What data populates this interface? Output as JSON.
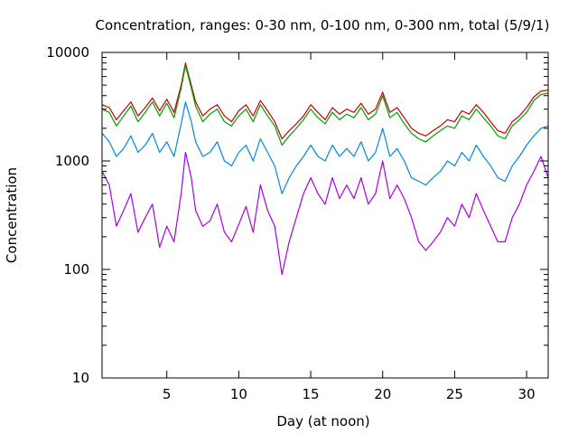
{
  "chart_data": {
    "type": "line",
    "title": "Concentration, ranges: 0-30 nm, 0-100 nm, 0-300 nm, total (5/9/1)",
    "xlabel": "Day (at noon)",
    "ylabel": "Concentration",
    "xlim": [
      0.5,
      31.5
    ],
    "ylim": [
      10,
      10000
    ],
    "yscale": "log",
    "x_ticks": [
      5,
      10,
      15,
      20,
      25,
      30
    ],
    "y_ticks": [
      10,
      100,
      1000,
      10000
    ],
    "x_tick_labels": [
      "5",
      "10",
      "15",
      "20",
      "25",
      "30"
    ],
    "y_tick_labels": [
      "10",
      "100",
      "1000",
      "10000"
    ],
    "grid": false,
    "series": [
      {
        "color": "#cc0000",
        "x": [
          0.5,
          1,
          1.5,
          2,
          2.5,
          3,
          3.5,
          4,
          4.5,
          5,
          5.5,
          6,
          6.3,
          6.7,
          7,
          7.5,
          8,
          8.5,
          9,
          9.5,
          10,
          10.5,
          11,
          11.5,
          12,
          12.5,
          13,
          13.5,
          14,
          14.5,
          15,
          15.5,
          16,
          16.5,
          17,
          17.5,
          18,
          18.5,
          19,
          19.5,
          20,
          20.5,
          21,
          21.5,
          22,
          22.5,
          23,
          23.5,
          24,
          24.5,
          25,
          25.5,
          26,
          26.5,
          27,
          27.5,
          28,
          28.5,
          29,
          29.5,
          30,
          30.5,
          31,
          31.5
        ],
        "values": [
          3300,
          3100,
          2400,
          2900,
          3500,
          2600,
          3100,
          3800,
          2900,
          3700,
          2800,
          5000,
          8000,
          5000,
          3500,
          2600,
          3000,
          3300,
          2600,
          2300,
          2900,
          3300,
          2600,
          3600,
          2900,
          2300,
          1600,
          1900,
          2200,
          2600,
          3300,
          2800,
          2400,
          3100,
          2700,
          3000,
          2800,
          3400,
          2700,
          3000,
          4300,
          2800,
          3100,
          2500,
          2000,
          1800,
          1700,
          1900,
          2100,
          2400,
          2300,
          2900,
          2700,
          3300,
          2800,
          2300,
          1900,
          1800,
          2300,
          2600,
          3100,
          3900,
          4400,
          4500
        ]
      },
      {
        "color": "#00a000",
        "x": [
          0.5,
          1,
          1.5,
          2,
          2.5,
          3,
          3.5,
          4,
          4.5,
          5,
          5.5,
          6,
          6.3,
          6.7,
          7,
          7.5,
          8,
          8.5,
          9,
          9.5,
          10,
          10.5,
          11,
          11.5,
          12,
          12.5,
          13,
          13.5,
          14,
          14.5,
          15,
          15.5,
          16,
          16.5,
          17,
          17.5,
          18,
          18.5,
          19,
          19.5,
          20,
          20.5,
          21,
          21.5,
          22,
          22.5,
          23,
          23.5,
          24,
          24.5,
          25,
          25.5,
          26,
          26.5,
          27,
          27.5,
          28,
          28.5,
          29,
          29.5,
          30,
          30.5,
          31,
          31.5
        ],
        "values": [
          3000,
          2800,
          2100,
          2600,
          3200,
          2300,
          2800,
          3500,
          2600,
          3400,
          2500,
          4700,
          7600,
          4700,
          3200,
          2300,
          2700,
          3000,
          2300,
          2100,
          2600,
          3000,
          2300,
          3300,
          2600,
          2100,
          1400,
          1700,
          2000,
          2400,
          3000,
          2500,
          2200,
          2800,
          2400,
          2700,
          2500,
          3100,
          2400,
          2700,
          4000,
          2500,
          2800,
          2200,
          1800,
          1600,
          1500,
          1700,
          1900,
          2100,
          2000,
          2600,
          2400,
          3000,
          2500,
          2100,
          1700,
          1600,
          2100,
          2400,
          2800,
          3600,
          4100,
          4200
        ]
      },
      {
        "color": "#0088ee",
        "x": [
          0.5,
          1,
          1.5,
          2,
          2.5,
          3,
          3.5,
          4,
          4.5,
          5,
          5.5,
          6,
          6.3,
          6.7,
          7,
          7.5,
          8,
          8.5,
          9,
          9.5,
          10,
          10.5,
          11,
          11.5,
          12,
          12.5,
          13,
          13.5,
          14,
          14.5,
          15,
          15.5,
          16,
          16.5,
          17,
          17.5,
          18,
          18.5,
          19,
          19.5,
          20,
          20.5,
          21,
          21.5,
          22,
          22.5,
          23,
          23.5,
          24,
          24.5,
          25,
          25.5,
          26,
          26.5,
          27,
          27.5,
          28,
          28.5,
          29,
          29.5,
          30,
          30.5,
          31,
          31.5
        ],
        "values": [
          1800,
          1500,
          1100,
          1300,
          1700,
          1200,
          1400,
          1800,
          1200,
          1500,
          1100,
          2200,
          3500,
          2300,
          1500,
          1100,
          1200,
          1500,
          1000,
          900,
          1200,
          1400,
          1000,
          1600,
          1200,
          900,
          500,
          700,
          900,
          1100,
          1400,
          1100,
          1000,
          1400,
          1100,
          1300,
          1100,
          1500,
          1000,
          1200,
          2000,
          1100,
          1300,
          1000,
          700,
          650,
          600,
          700,
          800,
          1000,
          900,
          1200,
          1000,
          1400,
          1100,
          900,
          700,
          650,
          900,
          1100,
          1400,
          1700,
          2000,
          2100
        ]
      },
      {
        "color": "#aa00ee",
        "x": [
          0.5,
          1,
          1.5,
          2,
          2.5,
          3,
          3.5,
          4,
          4.5,
          5,
          5.5,
          6,
          6.3,
          6.7,
          7,
          7.5,
          8,
          8.5,
          9,
          9.5,
          10,
          10.5,
          11,
          11.5,
          12,
          12.5,
          13,
          13.5,
          14,
          14.5,
          15,
          15.5,
          16,
          16.5,
          17,
          17.5,
          18,
          18.5,
          19,
          19.5,
          20,
          20.5,
          21,
          21.5,
          22,
          22.5,
          23,
          23.5,
          24,
          24.5,
          25,
          25.5,
          26,
          26.5,
          27,
          27.5,
          28,
          28.5,
          29,
          29.5,
          30,
          30.5,
          31,
          31.5
        ],
        "values": [
          800,
          600,
          250,
          350,
          500,
          220,
          300,
          400,
          160,
          250,
          180,
          500,
          1200,
          700,
          350,
          250,
          280,
          400,
          220,
          180,
          260,
          380,
          220,
          600,
          350,
          250,
          90,
          180,
          300,
          500,
          700,
          500,
          400,
          700,
          450,
          600,
          450,
          700,
          400,
          500,
          1000,
          450,
          600,
          450,
          300,
          180,
          150,
          180,
          220,
          300,
          250,
          400,
          300,
          500,
          350,
          250,
          180,
          180,
          300,
          400,
          600,
          800,
          1100,
          700
        ]
      }
    ]
  }
}
